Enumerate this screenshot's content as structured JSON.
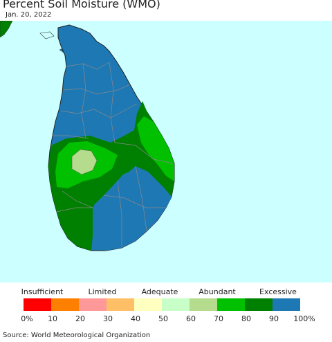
{
  "title": "Percent Soil Moisture (WMO)",
  "date": "Jan. 20, 2022",
  "legend": {
    "categories": [
      "Insufficient",
      "Limited",
      "Adequate",
      "Abundant",
      "Excessive"
    ],
    "colors": [
      "#ff0000",
      "#ff8000",
      "#ff9999",
      "#ffbf66",
      "#ffffbf",
      "#c8ffc8",
      "#b4dc8c",
      "#00c000",
      "#008000",
      "#1e78b4"
    ],
    "ticks": [
      "0%",
      "10",
      "20",
      "30",
      "40",
      "50",
      "60",
      "70",
      "80",
      "90",
      "100%"
    ]
  },
  "map": {
    "ocean_color": "#ccffff",
    "dominant_class": "90-100%",
    "regions": [
      {
        "area": "north and east",
        "class": "90-100%"
      },
      {
        "area": "east coast",
        "class": "70-80%"
      },
      {
        "area": "central highlands",
        "class": "80-90%"
      },
      {
        "area": "west central",
        "class": "60-70%"
      },
      {
        "area": "southeast",
        "class": "90-100%"
      },
      {
        "area": "southwest",
        "class": "80-90%"
      }
    ]
  },
  "source": "Source: World Meteorological Organization"
}
